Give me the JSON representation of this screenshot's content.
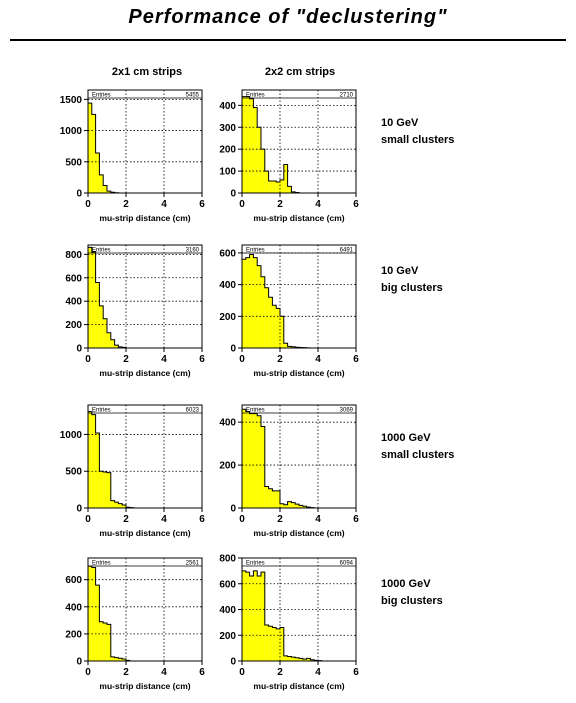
{
  "title": "Performance of \"declustering\"",
  "column_headers": [
    "2x1 cm strips",
    "2x2 cm strips"
  ],
  "row_labels": [
    [
      "10 GeV",
      "small clusters"
    ],
    [
      "10 GeV",
      "big clusters"
    ],
    [
      "1000 GeV",
      "small clusters"
    ],
    [
      "1000 GeV",
      "big clusters"
    ]
  ],
  "colors": {
    "fill": "#ffff00",
    "line": "#000000",
    "grid": "#000000"
  },
  "chart_data": [
    {
      "type": "bar",
      "panel": "10 GeV small clusters, 2x1 cm strips",
      "xlabel": "mu-strip distance (cm)",
      "ylabel": "",
      "xlim": [
        0,
        6
      ],
      "ylim": [
        0,
        1650
      ],
      "xticks": [
        0,
        2,
        4,
        6
      ],
      "yticks": [
        0,
        500,
        1000,
        1500
      ],
      "stats_label": "Entries",
      "entries": "5455",
      "bin_width": 0.2,
      "values": [
        1440,
        1260,
        640,
        290,
        120,
        30,
        12,
        5,
        0,
        0,
        0,
        0,
        0,
        0,
        0,
        0,
        0,
        0,
        0,
        0,
        0,
        0,
        0,
        0,
        0,
        0,
        0,
        0,
        0,
        0
      ]
    },
    {
      "type": "bar",
      "panel": "10 GeV small clusters, 2x2 cm strips",
      "xlabel": "mu-strip distance (cm)",
      "ylabel": "",
      "xlim": [
        0,
        6
      ],
      "ylim": [
        0,
        470
      ],
      "xticks": [
        0,
        2,
        4,
        6
      ],
      "yticks": [
        0,
        100,
        200,
        300,
        400
      ],
      "stats_label": "Entries",
      "entries": "2710",
      "bin_width": 0.2,
      "values": [
        440,
        440,
        430,
        390,
        300,
        200,
        100,
        55,
        55,
        50,
        60,
        130,
        30,
        5,
        2,
        0,
        0,
        0,
        0,
        0,
        0,
        0,
        0,
        0,
        0,
        0,
        0,
        0,
        0,
        0
      ]
    },
    {
      "type": "bar",
      "panel": "10 GeV big clusters, 2x1 cm strips",
      "xlabel": "mu-strip distance (cm)",
      "ylabel": "",
      "xlim": [
        0,
        6
      ],
      "ylim": [
        0,
        880
      ],
      "xticks": [
        0,
        2,
        4,
        6
      ],
      "yticks": [
        0,
        200,
        400,
        600,
        800
      ],
      "stats_label": "Entries",
      "entries": "3160",
      "bin_width": 0.2,
      "values": [
        860,
        820,
        560,
        360,
        250,
        130,
        70,
        25,
        10,
        5,
        0,
        0,
        0,
        0,
        0,
        0,
        0,
        0,
        0,
        0,
        0,
        0,
        0,
        0,
        0,
        0,
        0,
        0,
        0,
        0
      ]
    },
    {
      "type": "bar",
      "panel": "10 GeV big clusters, 2x2 cm strips",
      "xlabel": "mu-strip distance (cm)",
      "ylabel": "",
      "xlim": [
        0,
        6
      ],
      "ylim": [
        0,
        650
      ],
      "xticks": [
        0,
        2,
        4,
        6
      ],
      "yticks": [
        0,
        200,
        400,
        600
      ],
      "stats_label": "Entries",
      "entries": "6491",
      "bin_width": 0.2,
      "values": [
        560,
        570,
        590,
        570,
        520,
        450,
        380,
        320,
        270,
        250,
        200,
        30,
        10,
        8,
        5,
        3,
        2,
        1,
        0,
        0,
        0,
        0,
        0,
        0,
        0,
        0,
        0,
        0,
        0,
        0
      ]
    },
    {
      "type": "bar",
      "panel": "1000 GeV small clusters, 2x1 cm strips",
      "xlabel": "mu-strip distance (cm)",
      "ylabel": "",
      "xlim": [
        0,
        6
      ],
      "ylim": [
        0,
        1400
      ],
      "xticks": [
        0,
        2,
        4,
        6
      ],
      "yticks": [
        0,
        500,
        1000
      ],
      "stats_label": "Entries",
      "entries": "6023",
      "bin_width": 0.2,
      "values": [
        1310,
        1270,
        1020,
        500,
        490,
        480,
        100,
        80,
        60,
        40,
        10,
        5,
        0,
        0,
        0,
        0,
        0,
        0,
        0,
        0,
        0,
        0,
        0,
        0,
        0,
        0,
        0,
        0,
        0,
        0
      ]
    },
    {
      "type": "bar",
      "panel": "1000 GeV small clusters, 2x2 cm strips",
      "xlabel": "mu-strip distance (cm)",
      "ylabel": "",
      "xlim": [
        0,
        6
      ],
      "ylim": [
        0,
        480
      ],
      "xticks": [
        0,
        2,
        4,
        6
      ],
      "yticks": [
        0,
        200,
        400
      ],
      "stats_label": "Entries",
      "entries": "3069",
      "bin_width": 0.2,
      "values": [
        460,
        450,
        440,
        440,
        430,
        380,
        100,
        90,
        80,
        80,
        20,
        15,
        30,
        25,
        18,
        12,
        8,
        4,
        2,
        0,
        0,
        0,
        0,
        0,
        0,
        0,
        0,
        0,
        0,
        0
      ]
    },
    {
      "type": "bar",
      "panel": "1000 GeV big clusters, 2x1 cm strips",
      "xlabel": "mu-strip distance (cm)",
      "ylabel": "",
      "xlim": [
        0,
        6
      ],
      "ylim": [
        0,
        760
      ],
      "xticks": [
        0,
        2,
        4,
        6
      ],
      "yticks": [
        0,
        200,
        400,
        600
      ],
      "stats_label": "Entries",
      "entries": "2561",
      "bin_width": 0.2,
      "values": [
        700,
        690,
        560,
        290,
        280,
        270,
        30,
        25,
        20,
        15,
        5,
        0,
        0,
        0,
        0,
        0,
        0,
        0,
        0,
        0,
        0,
        0,
        0,
        0,
        0,
        0,
        0,
        0,
        0,
        0
      ]
    },
    {
      "type": "bar",
      "panel": "1000 GeV big clusters, 2x2 cm strips",
      "xlabel": "mu-strip distance (cm)",
      "ylabel": "",
      "xlim": [
        0,
        6
      ],
      "ylim": [
        0,
        800
      ],
      "xticks": [
        0,
        2,
        4,
        6
      ],
      "yticks": [
        0,
        200,
        400,
        600,
        800
      ],
      "stats_label": "Entries",
      "entries": "6094",
      "bin_width": 0.2,
      "values": [
        700,
        690,
        660,
        700,
        660,
        690,
        280,
        270,
        260,
        250,
        260,
        40,
        35,
        30,
        25,
        20,
        15,
        20,
        10,
        5,
        3,
        0,
        0,
        0,
        0,
        0,
        0,
        0,
        0,
        0
      ]
    }
  ]
}
